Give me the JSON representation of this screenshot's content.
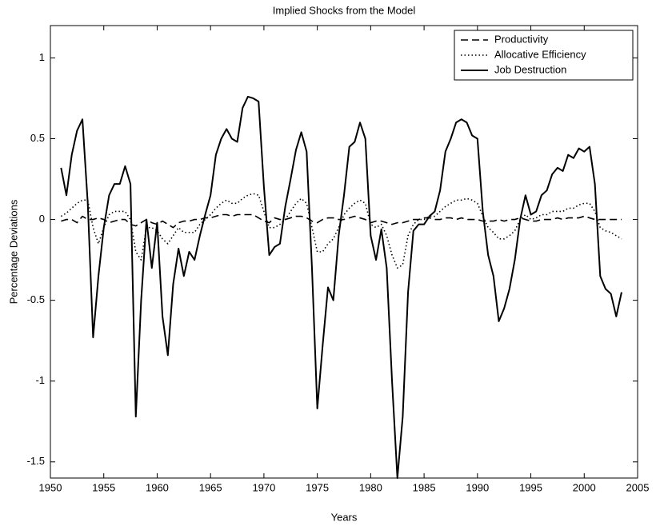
{
  "chart_data": {
    "type": "line",
    "title": "Implied Shocks from the Model",
    "x_label": "Years",
    "y_label": "Percentage Deviations",
    "x": [
      1951,
      1951.5,
      1952,
      1952.5,
      1953,
      1953.5,
      1954,
      1954.5,
      1955,
      1955.5,
      1956,
      1956.5,
      1957,
      1957.5,
      1958,
      1958.5,
      1959,
      1959.5,
      1960,
      1960.5,
      1961,
      1961.5,
      1962,
      1962.5,
      1963,
      1963.5,
      1964,
      1964.5,
      1965,
      1965.5,
      1966,
      1966.5,
      1967,
      1967.5,
      1968,
      1968.5,
      1969,
      1969.5,
      1970,
      1970.5,
      1971,
      1971.5,
      1972,
      1972.5,
      1973,
      1973.5,
      1974,
      1974.5,
      1975,
      1975.5,
      1976,
      1976.5,
      1977,
      1977.5,
      1978,
      1978.5,
      1979,
      1979.5,
      1980,
      1980.5,
      1981,
      1981.5,
      1982,
      1982.5,
      1983,
      1983.5,
      1984,
      1984.5,
      1985,
      1985.5,
      1986,
      1986.5,
      1987,
      1987.5,
      1988,
      1988.5,
      1989,
      1989.5,
      1990,
      1990.5,
      1991,
      1991.5,
      1992,
      1992.5,
      1993,
      1993.5,
      1994,
      1994.5,
      1995,
      1995.5,
      1996,
      1996.5,
      1997,
      1997.5,
      1998,
      1998.5,
      1999,
      1999.5,
      2000,
      2000.5,
      2001,
      2001.5,
      2002,
      2002.5,
      2003,
      2003.5
    ],
    "series": [
      {
        "name": "Productivity",
        "color": "#000000",
        "linestyle": "dashed",
        "values": [
          -0.01,
          0,
          0,
          -0.02,
          0.02,
          0,
          0,
          0.01,
          0,
          -0.02,
          -0.01,
          0,
          0,
          -0.03,
          -0.04,
          -0.02,
          0,
          -0.02,
          -0.03,
          -0.01,
          -0.03,
          -0.05,
          -0.02,
          -0.01,
          -0.01,
          0,
          0,
          0.01,
          0.01,
          0.02,
          0.03,
          0.03,
          0.02,
          0.03,
          0.03,
          0.03,
          0.03,
          0.01,
          -0.01,
          -0.02,
          0.01,
          0,
          0,
          0.01,
          0.02,
          0.02,
          0.01,
          -0.01,
          -0.02,
          0,
          0.01,
          0.01,
          0,
          0,
          0.01,
          0.02,
          0.01,
          0,
          -0.02,
          -0.01,
          -0.01,
          -0.02,
          -0.03,
          -0.02,
          -0.02,
          -0.01,
          0,
          0,
          0.01,
          0.01,
          0,
          0,
          0.01,
          0.01,
          0,
          0.01,
          0,
          0,
          0,
          -0.01,
          -0.01,
          -0.01,
          0,
          -0.01,
          0,
          0,
          0.01,
          0,
          -0.01,
          -0.01,
          0,
          0,
          0,
          0.01,
          0,
          0.01,
          0.01,
          0.01,
          0.02,
          0.01,
          0,
          0,
          0,
          0,
          0,
          0
        ]
      },
      {
        "name": "Allocative Efficiency",
        "color": "#000000",
        "linestyle": "dotted",
        "values": [
          0.02,
          0.04,
          0.07,
          0.1,
          0.12,
          0.12,
          -0.05,
          -0.15,
          -0.05,
          0.03,
          0.05,
          0.05,
          0.05,
          0,
          -0.2,
          -0.25,
          -0.05,
          -0.05,
          -0.07,
          -0.12,
          -0.15,
          -0.1,
          -0.05,
          -0.08,
          -0.08,
          -0.08,
          -0.03,
          0,
          0.03,
          0.07,
          0.1,
          0.12,
          0.1,
          0.1,
          0.13,
          0.15,
          0.16,
          0.15,
          0.05,
          -0.05,
          -0.05,
          -0.03,
          0,
          0.05,
          0.1,
          0.13,
          0.1,
          -0.05,
          -0.2,
          -0.2,
          -0.15,
          -0.12,
          -0.05,
          0.03,
          0.07,
          0.1,
          0.12,
          0.1,
          -0.03,
          -0.05,
          -0.03,
          -0.1,
          -0.22,
          -0.3,
          -0.28,
          -0.1,
          -0.03,
          0,
          0,
          0.02,
          0.02,
          0.05,
          0.08,
          0.1,
          0.12,
          0.12,
          0.13,
          0.12,
          0.1,
          0.02,
          -0.05,
          -0.08,
          -0.12,
          -0.12,
          -0.1,
          -0.07,
          0,
          0.03,
          0,
          0.01,
          0.03,
          0.03,
          0.05,
          0.05,
          0.05,
          0.07,
          0.07,
          0.09,
          0.1,
          0.1,
          0.05,
          -0.05,
          -0.07,
          -0.08,
          -0.1,
          -0.12
        ]
      },
      {
        "name": "Job Destruction",
        "color": "#000000",
        "linestyle": "solid",
        "values": [
          0.32,
          0.15,
          0.4,
          0.55,
          0.62,
          0.1,
          -0.73,
          -0.35,
          -0.05,
          0.15,
          0.22,
          0.22,
          0.33,
          0.22,
          -1.22,
          -0.5,
          0,
          -0.3,
          -0.02,
          -0.6,
          -0.84,
          -0.4,
          -0.18,
          -0.35,
          -0.2,
          -0.25,
          -0.1,
          0.03,
          0.15,
          0.4,
          0.5,
          0.56,
          0.5,
          0.48,
          0.69,
          0.76,
          0.75,
          0.73,
          0.2,
          -0.22,
          -0.17,
          -0.15,
          0.08,
          0.25,
          0.43,
          0.54,
          0.42,
          -0.3,
          -1.17,
          -0.78,
          -0.42,
          -0.5,
          -0.1,
          0.15,
          0.45,
          0.48,
          0.6,
          0.5,
          -0.1,
          -0.25,
          -0.06,
          -0.3,
          -1,
          -1.6,
          -1.22,
          -0.45,
          -0.07,
          -0.03,
          -0.03,
          0.02,
          0.05,
          0.18,
          0.42,
          0.5,
          0.6,
          0.62,
          0.6,
          0.52,
          0.5,
          0.05,
          -0.22,
          -0.35,
          -0.63,
          -0.55,
          -0.43,
          -0.25,
          0,
          0.15,
          0.03,
          0.05,
          0.15,
          0.18,
          0.28,
          0.32,
          0.3,
          0.4,
          0.38,
          0.44,
          0.42,
          0.45,
          0.22,
          -0.35,
          -0.43,
          -0.46,
          -0.6,
          -0.45
        ]
      }
    ],
    "xlim": [
      1950,
      2005
    ],
    "xticks": [
      1950,
      1955,
      1960,
      1965,
      1970,
      1975,
      1980,
      1985,
      1990,
      1995,
      2000,
      2005
    ],
    "ylim": [
      -1.6,
      1.2
    ],
    "yticks": [
      -1.5,
      -1,
      -0.5,
      0,
      0.5,
      1
    ],
    "legend": "top-right",
    "grid": false
  }
}
